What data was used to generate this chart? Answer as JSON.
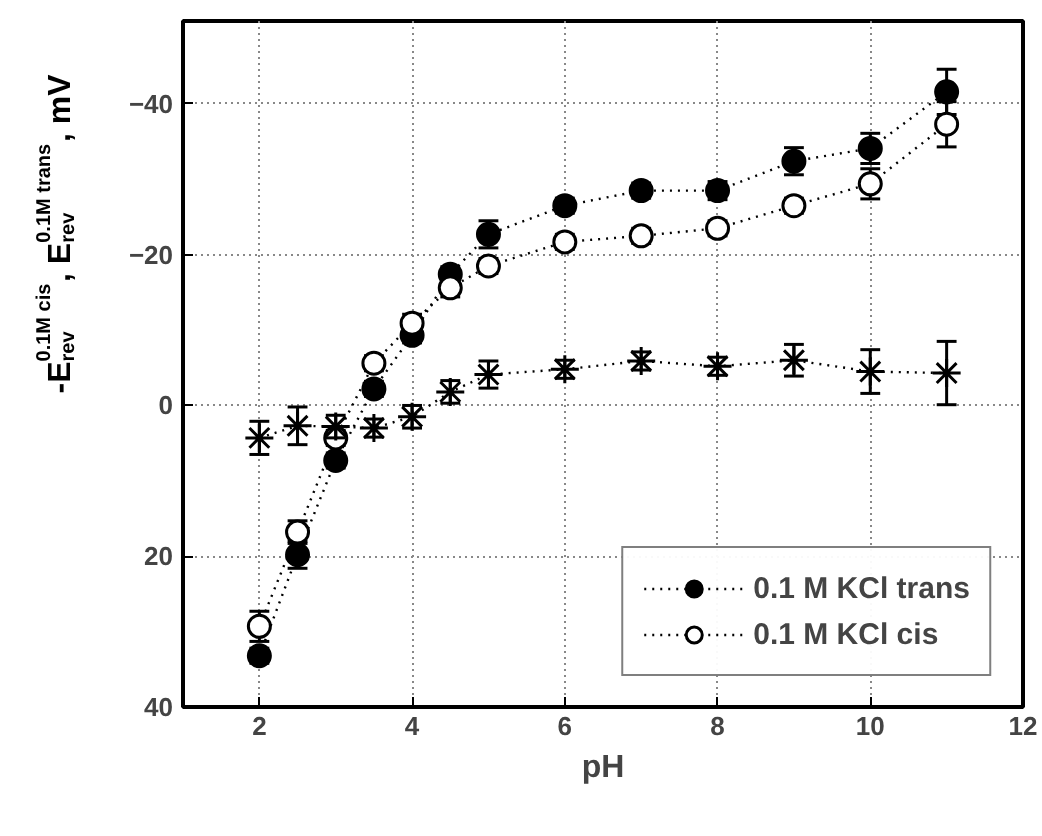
{
  "chart_data": {
    "type": "line",
    "xlabel": "pH",
    "ylabel": "-E$_{rev}$$^{0.1M cis}$, E$_{rev}$$^{0.1M trans}$, mV",
    "x": [
      2,
      2.5,
      3,
      3.5,
      4,
      4.5,
      5,
      6,
      7,
      8,
      9,
      10,
      11
    ],
    "xlim": [
      1,
      12
    ],
    "xticks": [
      2,
      4,
      6,
      8,
      10,
      12
    ],
    "ylim": [
      40,
      -51
    ],
    "yticks": [
      -40,
      -20,
      0,
      20,
      40
    ],
    "grid": true,
    "legend": "bottom right",
    "line_style": "dotted",
    "series": [
      {
        "name": "0.1 M KCl trans",
        "color": "#000000",
        "marker": "circle",
        "values": [
          33.2,
          19.8,
          7.3,
          -2.2,
          -9.3,
          -17.4,
          -22.7,
          -26.5,
          -28.5,
          -28.5,
          -32.4,
          -34.1,
          -41.6
        ],
        "errors": [
          1,
          1.8,
          1,
          1,
          1,
          1,
          1.8,
          1,
          1,
          1.2,
          1.8,
          2,
          3
        ]
      },
      {
        "name": "0.1 M KCl cis",
        "color": "#ffffff",
        "marker": "circle",
        "values": [
          29.3,
          16.8,
          4.3,
          -5.6,
          -10.9,
          -15.6,
          -18.5,
          -21.7,
          -22.5,
          -23.5,
          -26.5,
          -29.4,
          -37.3
        ],
        "errors": [
          2,
          1.5,
          1,
          1,
          1.2,
          1.2,
          1,
          1,
          1,
          1,
          1,
          2,
          3
        ]
      },
      {
        "color": "#000000",
        "marker": "cross",
        "values": [
          4.3,
          2.7,
          2.8,
          3.0,
          1.5,
          -1.8,
          -4.1,
          -4.8,
          -5.9,
          -5.2,
          -6.0,
          -4.5,
          -4.3
        ],
        "errors": [
          2.2,
          2.5,
          1.5,
          1.2,
          1.5,
          1.5,
          1.8,
          1.2,
          1.2,
          1.2,
          2.1,
          2.9,
          4.2
        ]
      }
    ]
  }
}
